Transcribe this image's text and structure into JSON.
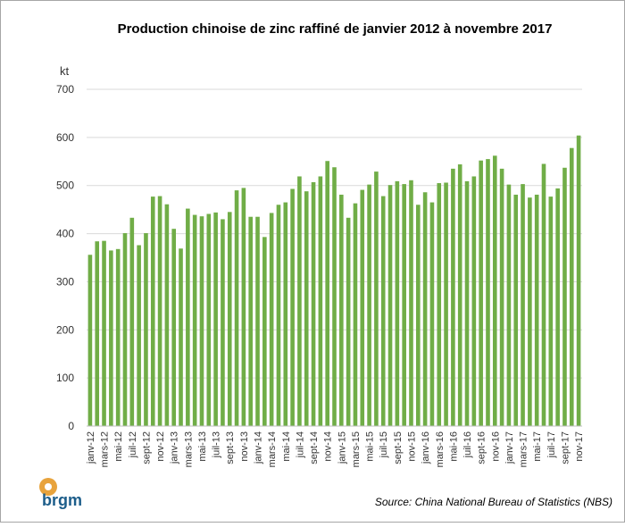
{
  "chart_data": {
    "type": "bar",
    "title": "Production chinoise de zinc raffiné de janvier 2012 à novembre 2017",
    "y_axis_label": "kt",
    "source": "Source: China National Bureau of Statistics (NBS)",
    "categories": [
      "janv-12",
      null,
      "mars-12",
      null,
      "mai-12",
      null,
      "juil-12",
      null,
      "sept-12",
      null,
      "nov-12",
      null,
      "janv-13",
      null,
      "mars-13",
      null,
      "mai-13",
      null,
      "juil-13",
      null,
      "sept-13",
      null,
      "nov-13",
      null,
      "janv-14",
      null,
      "mars-14",
      null,
      "mai-14",
      null,
      "juil-14",
      null,
      "sept-14",
      null,
      "nov-14",
      null,
      "janv-15",
      null,
      "mars-15",
      null,
      "mai-15",
      null,
      "juil-15",
      null,
      "sept-15",
      null,
      "nov-15",
      null,
      "janv-16",
      null,
      "mars-16",
      null,
      "mai-16",
      null,
      "juil-16",
      null,
      "sept-16",
      null,
      "nov-16",
      null,
      "janv-17",
      null,
      "mars-17",
      null,
      "mai-17",
      null,
      "juil-17",
      null,
      "sept-17",
      null,
      "nov-17"
    ],
    "values": [
      356,
      384,
      385,
      365,
      368,
      401,
      433,
      376,
      401,
      477,
      478,
      461,
      410,
      369,
      452,
      439,
      436,
      441,
      444,
      430,
      445,
      490,
      495,
      435,
      435,
      393,
      443,
      460,
      465,
      493,
      519,
      488,
      507,
      519,
      551,
      538,
      481,
      433,
      463,
      491,
      502,
      529,
      478,
      501,
      509,
      503,
      511,
      460,
      486,
      465,
      505,
      506,
      535,
      544,
      509,
      519,
      552,
      555,
      562,
      535,
      502,
      481,
      503,
      475,
      481,
      545,
      477,
      494,
      537,
      578,
      604
    ],
    "color": "#70ad47",
    "ylim": [
      0,
      700
    ],
    "yticks": [
      0,
      100,
      200,
      300,
      400,
      500,
      600,
      700
    ],
    "grid": true
  },
  "logo": "brgm"
}
